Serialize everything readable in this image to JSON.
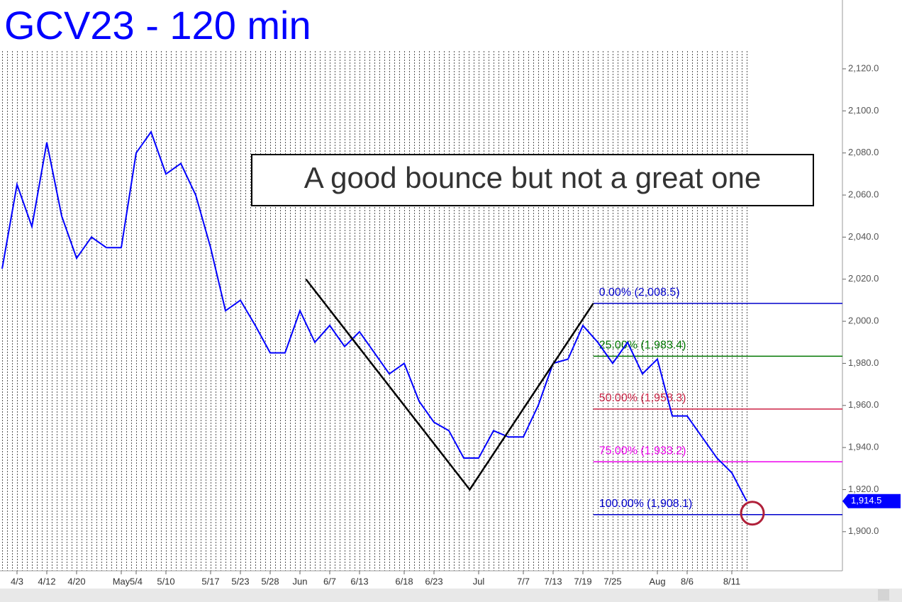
{
  "chart_data": {
    "type": "line",
    "title": "GCV23 - 120 min",
    "annotation": "A good bounce but not a great one",
    "categories": [
      null,
      "4/3",
      null,
      "4/12",
      null,
      "4/20",
      null,
      null,
      "May",
      "5/4",
      null,
      "5/10",
      null,
      null,
      "5/17",
      null,
      "5/23",
      null,
      "5/28",
      null,
      "Jun",
      null,
      "6/7",
      null,
      "6/13",
      null,
      null,
      "6/18",
      null,
      "6/23",
      null,
      null,
      "Jul",
      null,
      null,
      "7/7",
      null,
      "7/13",
      null,
      "7/19",
      null,
      "7/25",
      null,
      null,
      "Aug",
      null,
      "8/6",
      null,
      null,
      "8/11",
      null
    ],
    "series": [
      {
        "name": "GCV23",
        "color": "#0000ff",
        "values": [
          2025,
          2065,
          2045,
          2085,
          2050,
          2030,
          2040,
          2035,
          2035,
          2080,
          2090,
          2070,
          2075,
          2060,
          2035,
          2005,
          2010,
          1998,
          1985,
          1985,
          2005,
          1990,
          1998,
          1988,
          1995,
          1985,
          1975,
          1980,
          1962,
          1952,
          1948,
          1935,
          1935,
          1948,
          1945,
          1945,
          1960,
          1980,
          1982,
          1998,
          1990,
          1980,
          1990,
          1975,
          1982,
          1955,
          1955,
          1945,
          1935,
          1928,
          1914.5
        ]
      }
    ],
    "last_price": {
      "value": 1914.5,
      "label": "1,914.5"
    },
    "zigzag": {
      "color": "#000000",
      "x": [
        20.4,
        31.4,
        39.7
      ],
      "y": [
        2020,
        1920,
        2008.5
      ]
    },
    "fib_start": 39.7,
    "fib_levels": [
      {
        "label": "0.00% (2,008.5)",
        "value": 2008.5,
        "color": "#0000cc"
      },
      {
        "label": "25.00% (1,983.4)",
        "value": 1983.4,
        "color": "#007700"
      },
      {
        "label": "50.00% (1,958.3)",
        "value": 1958.3,
        "color": "#cc2244"
      },
      {
        "label": "75.00% (1,933.2)",
        "value": 1933.2,
        "color": "#ee00ee"
      },
      {
        "label": "100.00% (1,908.1)",
        "value": 1908.1,
        "color": "#0000cc"
      }
    ],
    "ylim": [
      1881.4,
      2152.7
    ],
    "yticks": [
      {
        "value": 1900,
        "label": "1,900.0"
      },
      {
        "value": 1920,
        "label": "1,920.0"
      },
      {
        "value": 1940,
        "label": "1,940.0"
      },
      {
        "value": 1960,
        "label": "1,960.0"
      },
      {
        "value": 1980,
        "label": "1,980.0"
      },
      {
        "value": 2000,
        "label": "2,000.0"
      },
      {
        "value": 2020,
        "label": "2,020.0"
      },
      {
        "value": 2040,
        "label": "2,040.0"
      },
      {
        "value": 2060,
        "label": "2,060.0"
      },
      {
        "value": 2080,
        "label": "2,080.0"
      },
      {
        "value": 2100,
        "label": "2,100.0"
      },
      {
        "value": 2120,
        "label": "2,120.0"
      }
    ]
  }
}
